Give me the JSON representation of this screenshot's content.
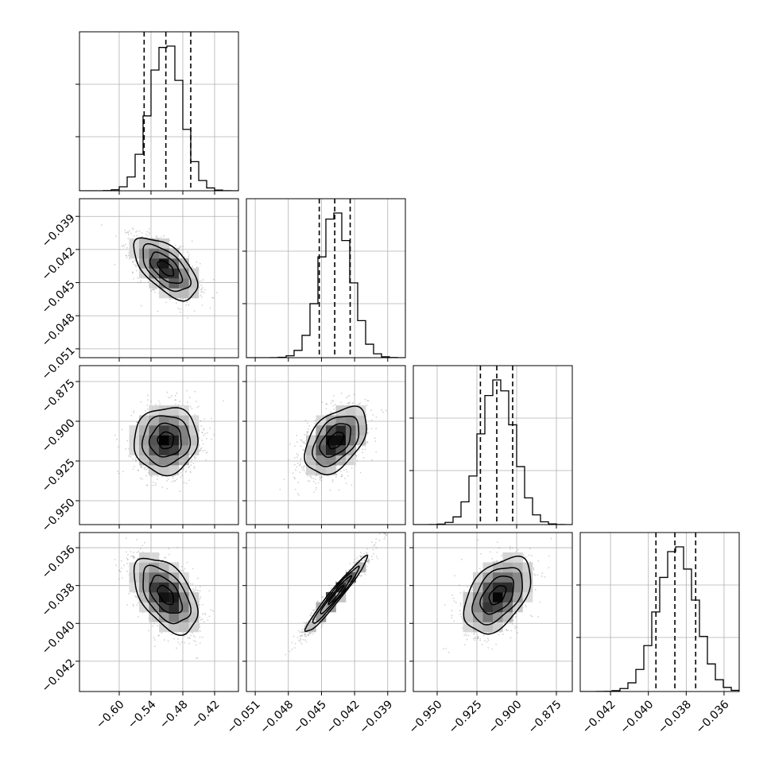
{
  "chart_data": {
    "type": "corner",
    "description_free": true,
    "grid": true,
    "parameters": [
      {
        "id": "p0",
        "range": [
          -0.675,
          -0.375
        ],
        "ticks": [
          -0.6,
          -0.54,
          -0.48,
          -0.42
        ],
        "tick_labels": [
          "−0.60",
          "−0.54",
          "−0.48",
          "−0.42"
        ],
        "quantiles": [
          -0.553,
          -0.512,
          -0.465
        ],
        "mean": -0.512,
        "sd": 0.03
      },
      {
        "id": "p1",
        "range": [
          -0.0518,
          -0.0374
        ],
        "ticks": [
          -0.051,
          -0.048,
          -0.045,
          -0.042,
          -0.039
        ],
        "tick_labels": [
          "−0.051",
          "−0.048",
          "−0.045",
          "−0.042",
          "−0.039"
        ],
        "quantiles": [
          -0.0452,
          -0.0438,
          -0.0424
        ],
        "mean": -0.0437,
        "sd": 0.0014
      },
      {
        "id": "p2",
        "range": [
          -0.965,
          -0.865
        ],
        "ticks": [
          -0.95,
          -0.925,
          -0.9,
          -0.875
        ],
        "tick_labels": [
          "−0.950",
          "−0.925",
          "−0.900",
          "−0.875"
        ],
        "quantiles": [
          -0.9228,
          -0.9125,
          -0.9025
        ],
        "mean": -0.912,
        "sd": 0.0105
      },
      {
        "id": "p3",
        "range": [
          -0.0436,
          -0.0352
        ],
        "ticks": [
          -0.042,
          -0.04,
          -0.038,
          -0.036
        ],
        "tick_labels": [
          "−0.042",
          "−0.040",
          "−0.038",
          "−0.036"
        ],
        "quantiles": [
          -0.0396,
          -0.0386,
          -0.0375
        ],
        "mean": -0.0385,
        "sd": 0.001
      }
    ],
    "correlations": [
      {
        "i": 0,
        "j": 1,
        "r": -0.6
      },
      {
        "i": 0,
        "j": 2,
        "r": 0.05
      },
      {
        "i": 0,
        "j": 3,
        "r": -0.5
      },
      {
        "i": 1,
        "j": 2,
        "r": 0.45
      },
      {
        "i": 1,
        "j": 3,
        "r": 0.97
      },
      {
        "i": 2,
        "j": 3,
        "r": 0.45
      }
    ],
    "histogram_bins": 20,
    "contour_levels": [
      "0.5σ",
      "1σ",
      "1.5σ",
      "2σ"
    ]
  },
  "colors": {
    "axis": "#000000",
    "grid": "#b0b0b0",
    "points": "#7f7f7f",
    "line": "#000000"
  }
}
